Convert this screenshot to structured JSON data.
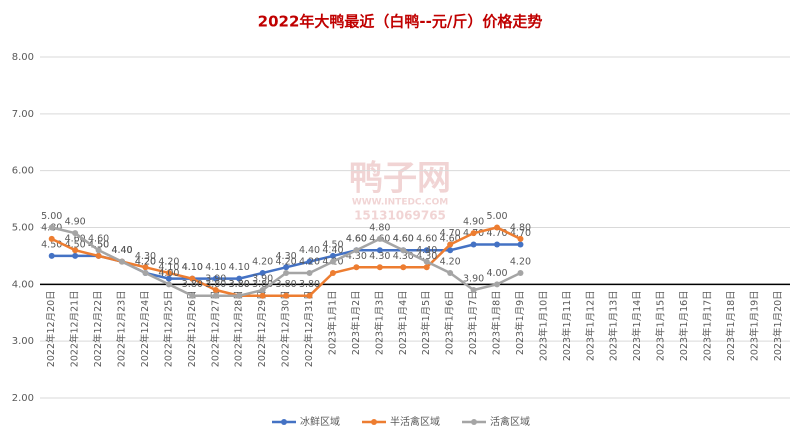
{
  "chart_data": {
    "type": "line",
    "title": "2022年大鸭最近（白鸭--元/斤）价格走势",
    "watermark": {
      "brand": "鸭子网",
      "site": "WWW.INTEDC.COM",
      "phone": "15131069765"
    },
    "categories": [
      "2022年12月20日",
      "2022年12月21日",
      "2022年12月22日",
      "2022年12月23日",
      "2022年12月24日",
      "2022年12月25日",
      "2022年12月26日",
      "2022年12月27日",
      "2022年12月28日",
      "2022年12月29日",
      "2022年12月30日",
      "2022年12月31日",
      "2023年1月1日",
      "2023年1月2日",
      "2023年1月3日",
      "2023年1月4日",
      "2023年1月5日",
      "2023年1月6日",
      "2023年1月7日",
      "2023年1月8日",
      "2023年1月9日",
      "2023年1月10日",
      "2023年1月11日",
      "2023年1月12日",
      "2023年1月13日",
      "2023年1月14日",
      "2023年1月15日",
      "2023年1月16日",
      "2023年1月17日",
      "2023年1月18日",
      "2023年1月19日",
      "2023年1月20日"
    ],
    "series": [
      {
        "name": "冰鲜区域",
        "color": "#4472c4",
        "values": [
          4.5,
          4.5,
          4.5,
          4.4,
          4.2,
          4.1,
          4.1,
          4.1,
          4.1,
          4.2,
          4.3,
          4.4,
          4.5,
          4.6,
          4.6,
          4.6,
          4.6,
          4.6,
          4.7,
          4.7,
          4.7,
          null,
          null,
          null,
          null,
          null,
          null,
          null,
          null,
          null,
          null,
          null
        ],
        "value_labels": [
          "4.50",
          "4.50",
          "4.50",
          "4.40",
          "4.20",
          "4.10",
          "4.10",
          "4.10",
          "4.10",
          "4.20",
          "4.30",
          "4.40",
          "4.50",
          "4.60",
          "4.60",
          "4.60",
          "4.60",
          "4.60",
          "4.70",
          "4.70",
          "4.70",
          null,
          null,
          null,
          null,
          null,
          null,
          null,
          null,
          null,
          null,
          null
        ]
      },
      {
        "name": "半活禽区域",
        "color": "#ed7d31",
        "values": [
          4.8,
          4.6,
          4.5,
          4.4,
          4.3,
          4.2,
          4.1,
          3.9,
          3.8,
          3.8,
          3.8,
          3.8,
          4.2,
          4.3,
          4.3,
          4.3,
          4.3,
          4.7,
          4.9,
          5.0,
          4.8,
          null,
          null,
          null,
          null,
          null,
          null,
          null,
          null,
          null,
          null,
          null
        ],
        "value_labels": [
          "4.80",
          "4.60",
          "4.50",
          "4.40",
          "4.30",
          "4.20",
          "4.10",
          "3.90",
          "3.80",
          "3.80",
          "3.80",
          "3.80",
          "4.20",
          "4.30",
          "4.30",
          "4.30",
          "4.30",
          "4.70",
          "4.90",
          "5.00",
          "4.80",
          null,
          null,
          null,
          null,
          null,
          null,
          null,
          null,
          null,
          null,
          null
        ]
      },
      {
        "name": "活禽区域",
        "color": "#a5a5a5",
        "values": [
          5.0,
          4.9,
          4.6,
          4.4,
          4.2,
          4.0,
          3.8,
          3.8,
          3.8,
          3.9,
          4.2,
          4.2,
          4.4,
          4.6,
          4.8,
          4.6,
          4.4,
          4.2,
          3.9,
          4.0,
          4.2,
          null,
          null,
          null,
          null,
          null,
          null,
          null,
          null,
          null,
          null,
          null
        ],
        "value_labels": [
          "5.00",
          "4.90",
          "4.60",
          "4.40",
          "4.20",
          "4.00",
          "3.80",
          "3.80",
          "3.80",
          "3.90",
          "4.20",
          "4.20",
          "4.40",
          "4.60",
          "4.80",
          "4.60",
          "4.40",
          "4.20",
          "3.90",
          "4.00",
          "4.20",
          null,
          null,
          null,
          null,
          null,
          null,
          null,
          null,
          null,
          null,
          null
        ]
      }
    ],
    "ylim": [
      2,
      8
    ],
    "yticks": [
      {
        "value": 2,
        "label": "2.00"
      },
      {
        "value": 3,
        "label": "3.00"
      },
      {
        "value": 4,
        "label": "4.00"
      },
      {
        "value": 5,
        "label": "5.00"
      },
      {
        "value": 6,
        "label": "6.00"
      },
      {
        "value": 7,
        "label": "7.00"
      },
      {
        "value": 8,
        "label": "8.00"
      }
    ],
    "x_axis_crosses": 4,
    "grid": true,
    "legend": "bottom"
  }
}
